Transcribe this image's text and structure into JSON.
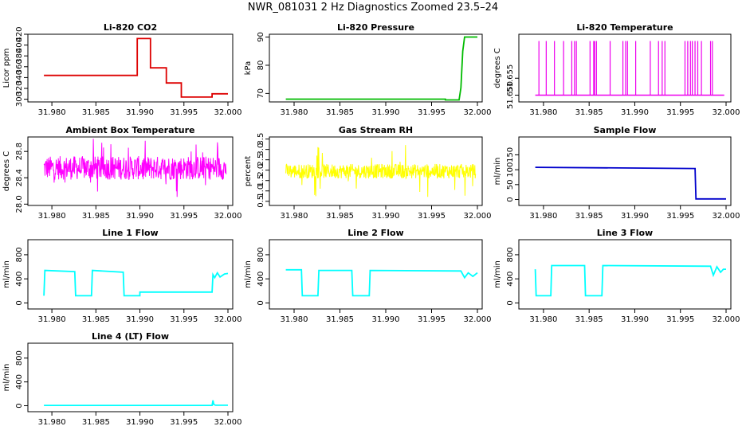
{
  "figure_title": "NWR_081031  2 Hz Diagnostics Zoomed 23.5–24",
  "chart_data": [
    {
      "type": "line",
      "title": "Li-820 CO2",
      "ylabel": "Licor ppm",
      "xlim": [
        31.978,
        32.0
      ],
      "ylim": [
        295,
        420
      ],
      "yticks": [
        300,
        320,
        340,
        360,
        380,
        400,
        420
      ],
      "xticks": [
        "31.980",
        "31.985",
        "31.990",
        "31.995",
        "32.000"
      ],
      "xtick_values": [
        31.98,
        31.985,
        31.99,
        31.995,
        32.0
      ],
      "color": "#dd0000",
      "series": [
        {
          "x": [
            31.9791,
            31.9897,
            31.9897,
            31.9912,
            31.9912,
            31.993,
            31.993,
            31.9947,
            31.9947,
            31.9982,
            31.9982,
            32.0
          ],
          "y": [
            344,
            344,
            412,
            412,
            358,
            358,
            330,
            330,
            304,
            304,
            310,
            310
          ]
        }
      ]
    },
    {
      "type": "line",
      "title": "Li-820 Pressure",
      "ylabel": "kPa",
      "xlim": [
        31.978,
        32.0
      ],
      "ylim": [
        67,
        91
      ],
      "yticks": [
        70,
        80,
        90
      ],
      "xticks": [
        "31.980",
        "31.985",
        "31.990",
        "31.995",
        "32.000"
      ],
      "xtick_values": [
        31.98,
        31.985,
        31.99,
        31.995,
        32.0
      ],
      "color": "#00bb00",
      "series": [
        {
          "x": [
            31.9791,
            31.9965,
            31.9965,
            31.998,
            31.9982,
            31.9984,
            31.9986,
            32.0
          ],
          "y": [
            68,
            68,
            67.7,
            67.7,
            72,
            85,
            90,
            90
          ]
        }
      ]
    },
    {
      "type": "line",
      "title": "Li-820 Temperature",
      "ylabel": "degrees C",
      "xlim": [
        31.978,
        32.0
      ],
      "ylim": [
        51.648,
        51.668
      ],
      "yticks": [
        51.65,
        51.655
      ],
      "ytick_labels": [
        "51.650",
        "51.655"
      ],
      "xticks": [
        "31.980",
        "31.985",
        "31.990",
        "31.995",
        "32.000"
      ],
      "xtick_values": [
        31.98,
        31.985,
        31.99,
        31.995,
        32.0
      ],
      "color": "#ee00ee",
      "base": 51.65,
      "high": 51.666,
      "spikes": [
        31.9795,
        31.9803,
        31.9812,
        31.9822,
        31.9831,
        31.9834,
        31.9836,
        31.9851,
        31.9855,
        31.9856,
        31.9858,
        31.9873,
        31.9887,
        31.989,
        31.9892,
        31.9901,
        31.9917,
        31.9926,
        31.993,
        31.9933,
        31.9955,
        31.9958,
        31.9961,
        31.9963,
        31.9966,
        31.9969,
        31.9973,
        31.9983,
        31.9985
      ]
    },
    {
      "type": "line",
      "title": "Ambient Box Temperature",
      "ylabel": "degrees C",
      "xlim": [
        31.978,
        32.0
      ],
      "ylim": [
        27.98,
        29.02
      ],
      "yticks": [
        28.0,
        28.4,
        28.8
      ],
      "ytick_labels": [
        "28.0",
        "28.4",
        "28.8"
      ],
      "xticks": [
        "31.980",
        "31.985",
        "31.990",
        "31.995",
        "32.000"
      ],
      "xtick_values": [
        31.98,
        31.985,
        31.99,
        31.995,
        32.0
      ],
      "color": "#ff00ff",
      "noise": {
        "x0": 31.9791,
        "x1": 31.9998,
        "center": 28.55,
        "amp": 0.18,
        "spike": 0.45
      }
    },
    {
      "type": "line",
      "title": "Gas Stream RH",
      "ylabel": "percent",
      "xlim": [
        31.978,
        32.0
      ],
      "ylim": [
        0.3,
        3.6
      ],
      "yticks": [
        0.5,
        1.0,
        1.5,
        2.0,
        2.5,
        3.0,
        3.5
      ],
      "ytick_labels": [
        "0.5",
        "1.0",
        "1.5",
        "2.0",
        "2.5",
        "3.0",
        "3.5"
      ],
      "xticks": [
        "31.980",
        "31.985",
        "31.990",
        "31.995",
        "32.000"
      ],
      "xtick_values": [
        31.98,
        31.985,
        31.99,
        31.995,
        32.0
      ],
      "color": "#ffff00",
      "noise": {
        "x0": 31.9791,
        "x1": 31.9998,
        "center": 1.95,
        "amp": 0.35,
        "spike": 1.3
      }
    },
    {
      "type": "line",
      "title": "Sample Flow",
      "ylabel": "ml/min",
      "xlim": [
        31.978,
        32.0
      ],
      "ylim": [
        -20,
        210
      ],
      "yticks": [
        0,
        50,
        100,
        150
      ],
      "xticks": [
        "31.980",
        "31.985",
        "31.990",
        "31.995",
        "32.000"
      ],
      "xtick_values": [
        31.98,
        31.985,
        31.99,
        31.995,
        32.0
      ],
      "color": "#0000cc",
      "series": [
        {
          "x": [
            31.9791,
            31.9965,
            31.9966,
            31.9967,
            32.0
          ],
          "y": [
            108,
            104,
            104,
            2,
            2
          ]
        }
      ]
    },
    {
      "type": "line",
      "title": "Line 1 Flow",
      "ylabel": "ml/min",
      "xlim": [
        31.978,
        32.0
      ],
      "ylim": [
        -100,
        1050
      ],
      "yticks": [
        0,
        400,
        800
      ],
      "xticks": [
        "31.980",
        "31.985",
        "31.990",
        "31.995",
        "32.000"
      ],
      "xtick_values": [
        31.98,
        31.985,
        31.99,
        31.995,
        32.0
      ],
      "color": "#00ffff",
      "series": [
        {
          "x": [
            31.9791,
            31.9792,
            31.9826,
            31.9827,
            31.9845,
            31.9846,
            31.9881,
            31.9882,
            31.99,
            31.99,
            31.9982,
            31.9983,
            31.9985,
            31.9988,
            31.9991,
            31.9996,
            32.0
          ],
          "y": [
            120,
            540,
            520,
            120,
            120,
            540,
            510,
            120,
            120,
            180,
            180,
            470,
            420,
            500,
            430,
            480,
            490
          ]
        }
      ]
    },
    {
      "type": "line",
      "title": "Line 2 Flow",
      "ylabel": "ml/min",
      "xlim": [
        31.978,
        32.0
      ],
      "ylim": [
        -100,
        1050
      ],
      "yticks": [
        0,
        400,
        800
      ],
      "xticks": [
        "31.980",
        "31.985",
        "31.990",
        "31.995",
        "32.000"
      ],
      "xtick_values": [
        31.98,
        31.985,
        31.99,
        31.995,
        32.0
      ],
      "color": "#00ffff",
      "series": [
        {
          "x": [
            31.9791,
            31.9808,
            31.9809,
            31.9826,
            31.9827,
            31.9863,
            31.9864,
            31.9882,
            31.9883,
            31.9982,
            31.9986,
            31.999,
            31.9995,
            32.0
          ],
          "y": [
            550,
            550,
            120,
            120,
            540,
            540,
            120,
            120,
            540,
            530,
            420,
            500,
            440,
            500
          ]
        }
      ]
    },
    {
      "type": "line",
      "title": "Line 3 Flow",
      "ylabel": "ml/min",
      "xlim": [
        31.978,
        32.0
      ],
      "ylim": [
        -100,
        1050
      ],
      "yticks": [
        0,
        400,
        800
      ],
      "xticks": [
        "31.980",
        "31.985",
        "31.990",
        "31.995",
        "32.000"
      ],
      "xtick_values": [
        31.98,
        31.985,
        31.99,
        31.995,
        32.0
      ],
      "color": "#00ffff",
      "series": [
        {
          "x": [
            31.9791,
            31.9792,
            31.9808,
            31.9809,
            31.9845,
            31.9846,
            31.9864,
            31.9865,
            31.9983,
            31.9986,
            31.999,
            31.9994,
            31.9997,
            32.0
          ],
          "y": [
            560,
            120,
            120,
            620,
            620,
            120,
            120,
            620,
            610,
            460,
            600,
            510,
            560,
            560
          ]
        }
      ]
    },
    {
      "type": "line",
      "title": "Line 4 (LT) Flow",
      "ylabel": "ml/min",
      "xlim": [
        31.978,
        32.0
      ],
      "ylim": [
        -100,
        1050
      ],
      "yticks": [
        0,
        400,
        800
      ],
      "xticks": [
        "31.980",
        "31.985",
        "31.990",
        "31.995",
        "32.000"
      ],
      "xtick_values": [
        31.98,
        31.985,
        31.99,
        31.995,
        32.0
      ],
      "color": "#00ffff",
      "series": [
        {
          "x": [
            31.9791,
            31.9982,
            31.9983,
            31.9984,
            31.9986,
            32.0
          ],
          "y": [
            5,
            5,
            90,
            20,
            8,
            8
          ]
        }
      ]
    }
  ]
}
